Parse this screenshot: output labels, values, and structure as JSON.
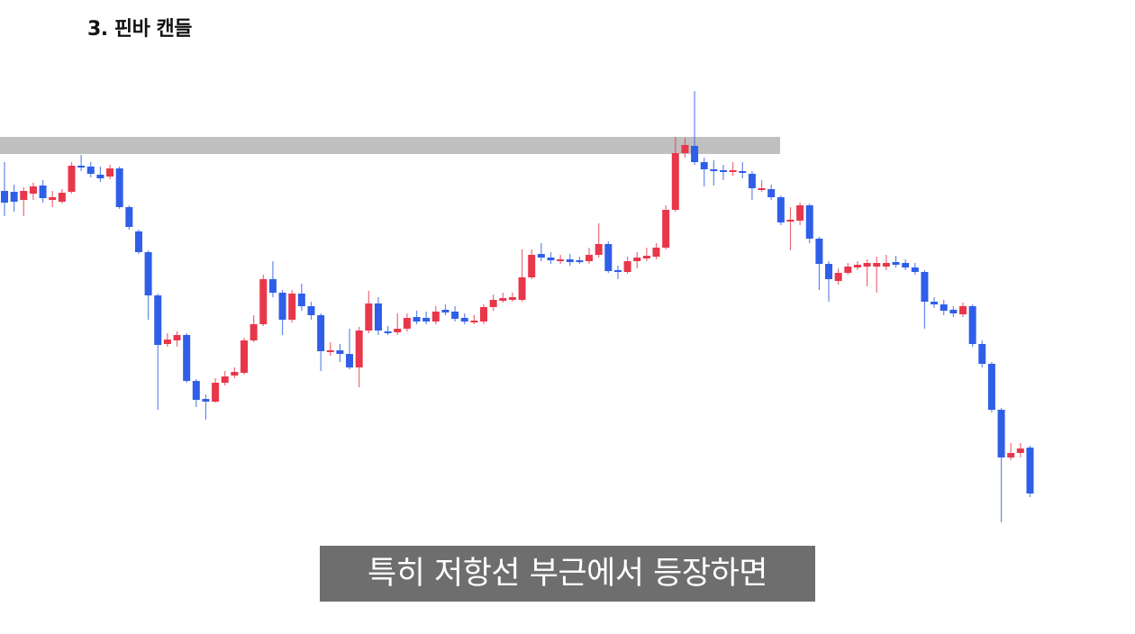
{
  "chart_data": {
    "type": "candlestick",
    "title": "3. 핀바 캔들",
    "ylim": [
      -4,
      700
    ],
    "up_color": "#e8374a",
    "down_color": "#2f5fe8",
    "resistance_zone": [
      529,
      548
    ],
    "zone_color": "#c0c0c0",
    "open": [
      488,
      487,
      478,
      485,
      494,
      478,
      476,
      487,
      516,
      515,
      506,
      504,
      513,
      470,
      443,
      420,
      372,
      318,
      322,
      328,
      277,
      257,
      254,
      275,
      283,
      286,
      322,
      340,
      390,
      375,
      345,
      374,
      360,
      350,
      309,
      311,
      307,
      292,
      333,
      363,
      332,
      331,
      335,
      348,
      347,
      343,
      356,
      354,
      347,
      343,
      343,
      359,
      366,
      367,
      367,
      392,
      418,
      414,
      410,
      412,
      411,
      410,
      417,
      429,
      400,
      398,
      410,
      413,
      415,
      425,
      467,
      530,
      538,
      520,
      512,
      511,
      509,
      510,
      507,
      490,
      490,
      481,
      454,
      455,
      472,
      435,
      407,
      388,
      397,
      403,
      404,
      404,
      404,
      409,
      408,
      403,
      398,
      365,
      362,
      356,
      351,
      360,
      318,
      296,
      245,
      192,
      197,
      203
    ],
    "high": [
      520,
      495,
      492,
      497,
      500,
      488,
      490,
      520,
      528,
      520,
      515,
      517,
      515,
      472,
      445,
      422,
      374,
      330,
      332,
      330,
      279,
      262,
      280,
      288,
      292,
      325,
      350,
      395,
      410,
      378,
      378,
      385,
      365,
      352,
      320,
      318,
      335,
      337,
      377,
      370,
      338,
      352,
      352,
      355,
      354,
      360,
      362,
      360,
      352,
      350,
      362,
      373,
      375,
      375,
      423,
      423,
      430,
      420,
      417,
      418,
      415,
      425,
      452,
      432,
      405,
      415,
      420,
      425,
      430,
      472,
      548,
      547,
      599,
      525,
      522,
      517,
      520,
      520,
      510,
      500,
      495,
      483,
      470,
      475,
      474,
      437,
      410,
      402,
      408,
      410,
      412,
      415,
      417,
      416,
      412,
      408,
      400,
      370,
      367,
      360,
      364,
      362,
      322,
      298,
      247,
      208,
      208,
      205
    ],
    "low": [
      460,
      465,
      460,
      478,
      475,
      470,
      474,
      485,
      510,
      503,
      498,
      501,
      468,
      445,
      418,
      345,
      245,
      315,
      315,
      275,
      248,
      234,
      253,
      272,
      280,
      284,
      320,
      338,
      370,
      328,
      342,
      355,
      345,
      288,
      305,
      298,
      290,
      270,
      330,
      328,
      328,
      328,
      332,
      340,
      340,
      340,
      350,
      343,
      340,
      340,
      340,
      355,
      364,
      365,
      365,
      390,
      410,
      407,
      407,
      405,
      407,
      407,
      414,
      397,
      390,
      396,
      402,
      410,
      412,
      423,
      465,
      525,
      517,
      493,
      494,
      500,
      505,
      502,
      478,
      487,
      478,
      450,
      422,
      450,
      430,
      378,
      365,
      384,
      395,
      400,
      382,
      375,
      400,
      403,
      400,
      395,
      335,
      358,
      350,
      348,
      348,
      315,
      292,
      242,
      120,
      189,
      192,
      148
    ],
    "close": [
      475,
      476,
      488,
      493,
      480,
      481,
      486,
      516,
      514,
      507,
      502,
      513,
      470,
      448,
      420,
      372,
      317,
      323,
      328,
      277,
      256,
      254,
      275,
      282,
      287,
      322,
      340,
      390,
      375,
      345,
      374,
      360,
      350,
      310,
      311,
      307,
      292,
      333,
      363,
      333,
      330,
      335,
      347,
      343,
      343,
      354,
      353,
      346,
      343,
      344,
      359,
      367,
      369,
      370,
      392,
      417,
      414,
      411,
      412,
      409,
      409,
      417,
      429,
      399,
      398,
      410,
      414,
      416,
      425,
      467,
      530,
      539,
      520,
      512,
      510,
      510,
      511,
      508,
      491,
      491,
      481,
      453,
      456,
      472,
      435,
      407,
      390,
      397,
      404,
      406,
      408,
      408,
      408,
      406,
      403,
      398,
      365,
      362,
      355,
      352,
      360,
      318,
      296,
      245,
      192,
      197,
      202,
      152
    ]
  },
  "caption": "특히 저항선 부근에서 등장하면"
}
